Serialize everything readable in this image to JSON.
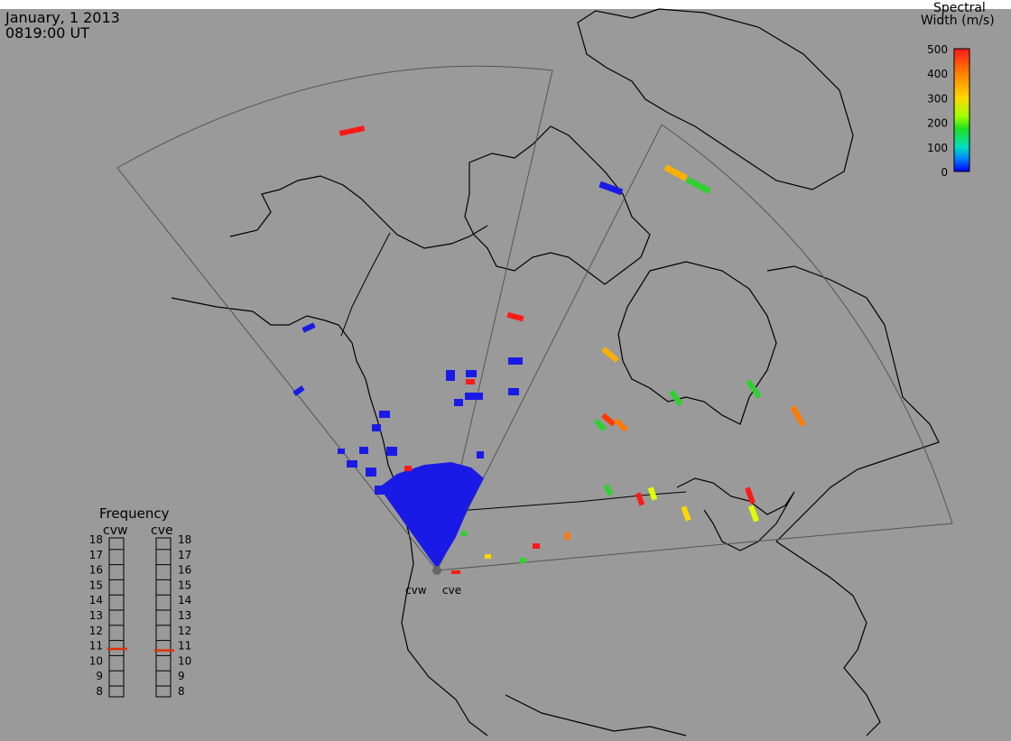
{
  "header": {
    "date": "January, 1 2013",
    "time": "0819:00 UT"
  },
  "colorbar": {
    "title_line1": "Spectral",
    "title_line2": "Width (m/s)",
    "ticks": [
      "500",
      "400",
      "300",
      "200",
      "100",
      "0"
    ],
    "colors": [
      "#ff1a1a",
      "#ff8000",
      "#ffd700",
      "#e0ff00",
      "#20e020",
      "#00e0c0",
      "#0080ff",
      "#0000ff"
    ]
  },
  "radars": {
    "west": "cvw",
    "east": "cve"
  },
  "frequency": {
    "title": "Frequency",
    "ticks": [
      "18",
      "17",
      "16",
      "15",
      "14",
      "13",
      "12",
      "11",
      "10",
      "9",
      "8"
    ],
    "cvw_value": 10.8,
    "cve_value": 10.7,
    "marker_color": "#e03000"
  },
  "colors": {
    "background": "#9a9a9a",
    "top_band": "#ffffff",
    "coast": "#000000",
    "fov": "#555555",
    "scatter_low": "#1a1ae6"
  }
}
